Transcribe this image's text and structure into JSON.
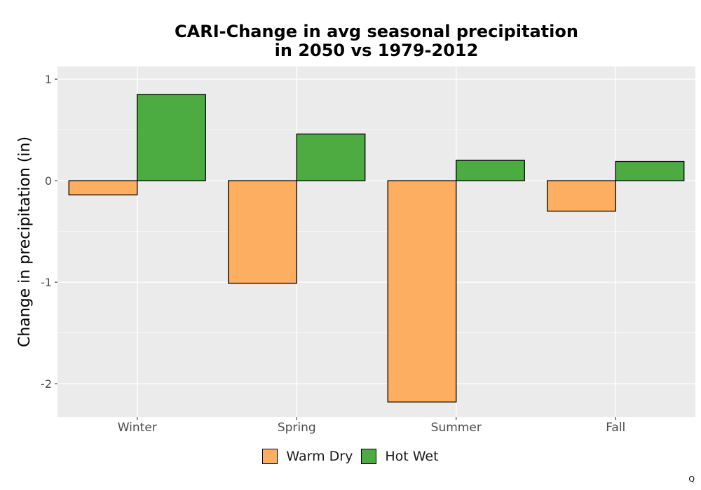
{
  "chart_data": {
    "type": "bar",
    "title": [
      "CARI-Change in avg seasonal precipitation",
      "in 2050 vs 1979-2012"
    ],
    "xlabel": "",
    "ylabel": "Change in precipitation (in)",
    "categories": [
      "Winter",
      "Spring",
      "Summer",
      "Fall"
    ],
    "series": [
      {
        "name": "Warm Dry",
        "color": "#FDAE61",
        "values": [
          -0.14,
          -1.01,
          -2.18,
          -0.3
        ]
      },
      {
        "name": "Hot Wet",
        "color": "#4DAC41",
        "values": [
          0.85,
          0.46,
          0.2,
          0.19
        ]
      }
    ],
    "ylim": [
      -2.33,
      1.0
    ],
    "yticks": [
      1,
      0,
      -1,
      -2
    ],
    "ytick_labels": [
      "1",
      "0",
      "-1",
      "-2"
    ],
    "grid": true,
    "legend_position": "bottom"
  },
  "footnote": "Q"
}
